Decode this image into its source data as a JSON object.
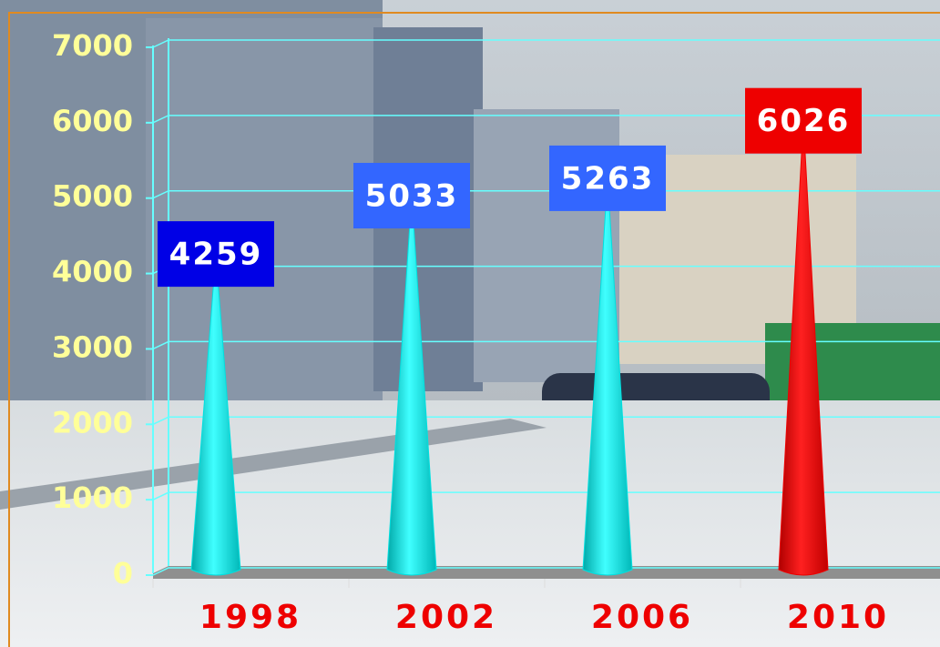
{
  "chart_data": {
    "type": "cone",
    "categories": [
      "1998",
      "2002",
      "2006",
      "2010"
    ],
    "values": [
      4259,
      5033,
      5263,
      6026
    ],
    "colors": [
      "#00e0e0",
      "#00e0e0",
      "#00e0e0",
      "#ee0000"
    ],
    "label_colors": [
      "#0000e6",
      "#3366ff",
      "#3366ff",
      "#ee0000"
    ],
    "ylim": [
      0,
      7000
    ],
    "yticks": [
      0,
      1000,
      2000,
      3000,
      4000,
      5000,
      6000,
      7000
    ],
    "grid": true
  }
}
